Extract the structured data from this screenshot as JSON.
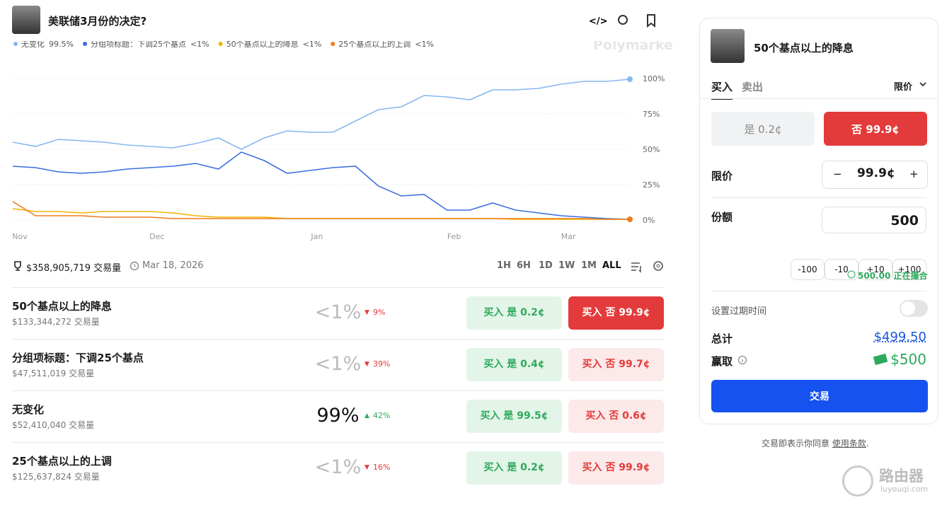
{
  "header": {
    "title": "美联储3月份的决定?"
  },
  "chart_data": {
    "type": "line",
    "watermark": "Polymarket",
    "categories": [
      "Nov",
      null,
      null,
      null,
      null,
      null,
      "Dec",
      null,
      null,
      null,
      null,
      null,
      null,
      "Jan",
      null,
      null,
      null,
      null,
      null,
      "Feb",
      null,
      null,
      null,
      null,
      "Mar",
      null,
      null,
      null
    ],
    "series": [
      {
        "name": "无变化",
        "legend_value": "99.5%",
        "color": "#85b8f0",
        "values": [
          55,
          52,
          57,
          56,
          55,
          53,
          52,
          51,
          54,
          58,
          50,
          58,
          63,
          62,
          62,
          70,
          78,
          80,
          88,
          87,
          85,
          92,
          92,
          93,
          96,
          98,
          98,
          99.5
        ]
      },
      {
        "name": "分组项标题：下调25个基点",
        "legend_value": "<1%",
        "color": "#3b6fe0",
        "values": [
          38,
          37,
          34,
          33,
          34,
          36,
          37,
          38,
          40,
          36,
          48,
          42,
          33,
          35,
          37,
          38,
          24,
          17,
          18,
          7,
          7,
          12,
          7,
          5,
          3,
          2,
          1,
          0.5
        ]
      },
      {
        "name": "50个基点以上的降息",
        "legend_value": "<1%",
        "color": "#f0b400",
        "values": [
          8,
          6,
          6,
          5,
          6,
          6,
          6,
          5,
          3,
          2,
          2,
          2,
          1,
          1,
          1,
          1,
          1,
          1,
          1,
          1,
          1,
          1,
          0.5,
          0.5,
          0.5,
          0.5,
          0.5,
          0.5
        ]
      },
      {
        "name": "25个基点以上的上调",
        "legend_value": "<1%",
        "color": "#f07b1a",
        "values": [
          13,
          3,
          3,
          3,
          2,
          2,
          2,
          1,
          1,
          1,
          1,
          1,
          1,
          1,
          1,
          1,
          1,
          1,
          1,
          1,
          1,
          1,
          1,
          1,
          1,
          1,
          0.5,
          0.5
        ]
      }
    ],
    "ylim": [
      0,
      100
    ],
    "yticks": [
      {
        "value": 0,
        "label": "0%"
      },
      {
        "value": 25,
        "label": "25%"
      },
      {
        "value": 50,
        "label": "50%"
      },
      {
        "value": 75,
        "label": "75%"
      },
      {
        "value": 100,
        "label": "100%"
      }
    ],
    "grid": true
  },
  "stats": {
    "volume": "$358,905,719 交易量",
    "date": "Mar 18, 2026"
  },
  "time_ranges": [
    "1H",
    "6H",
    "1D",
    "1W",
    "1M",
    "ALL"
  ],
  "markets": [
    {
      "name": "50个基点以上的降息",
      "volume": "$133,344,272 交易量",
      "probability": "<1%",
      "change": "9%",
      "buy_yes": "买入 是 0.2¢",
      "buy_no": "买入 否 99.9¢"
    },
    {
      "name": "分组项标题：下调25个基点",
      "volume": "$47,511,019 交易量",
      "probability": "<1%",
      "change": "39%",
      "buy_yes": "买入 是 0.4¢",
      "buy_no": "买入 否 99.7¢"
    },
    {
      "name": "无变化",
      "volume": "$52,410,040 交易量",
      "probability": "99%",
      "change": "42%",
      "buy_yes": "买入 是 99.5¢",
      "buy_no": "买入 否 0.6¢"
    },
    {
      "name": "25个基点以上的上调",
      "volume": "$125,637,824 交易量",
      "probability": "<1%",
      "change": "16%",
      "buy_yes": "买入 是 0.2¢",
      "buy_no": "买入 否 99.9¢"
    }
  ],
  "order_panel": {
    "title": "50个基点以上的降息",
    "tabs": [
      "买入",
      "卖出"
    ],
    "order_type": "限价",
    "yes": "是 0.2¢",
    "no": "否 99.9¢",
    "limit_label": "限价",
    "limit_value": "99.9¢",
    "minus": "−",
    "plus": "+",
    "shares_label": "份额",
    "shares_value": "500",
    "quick": [
      "-100",
      "-10",
      "+10",
      "+100"
    ],
    "matching": "500.00 正在撮合",
    "expiry_label": "设置过期时间",
    "total_label": "总计",
    "total_value": "$499.50",
    "win_label": "赢取",
    "win_value": "$500",
    "submit": "交易"
  },
  "footer": {
    "text": "交易即表示你同意",
    "link": "使用条款",
    "end": "."
  },
  "watermark": {
    "title": "路由器",
    "url": "luyouqi.com"
  }
}
